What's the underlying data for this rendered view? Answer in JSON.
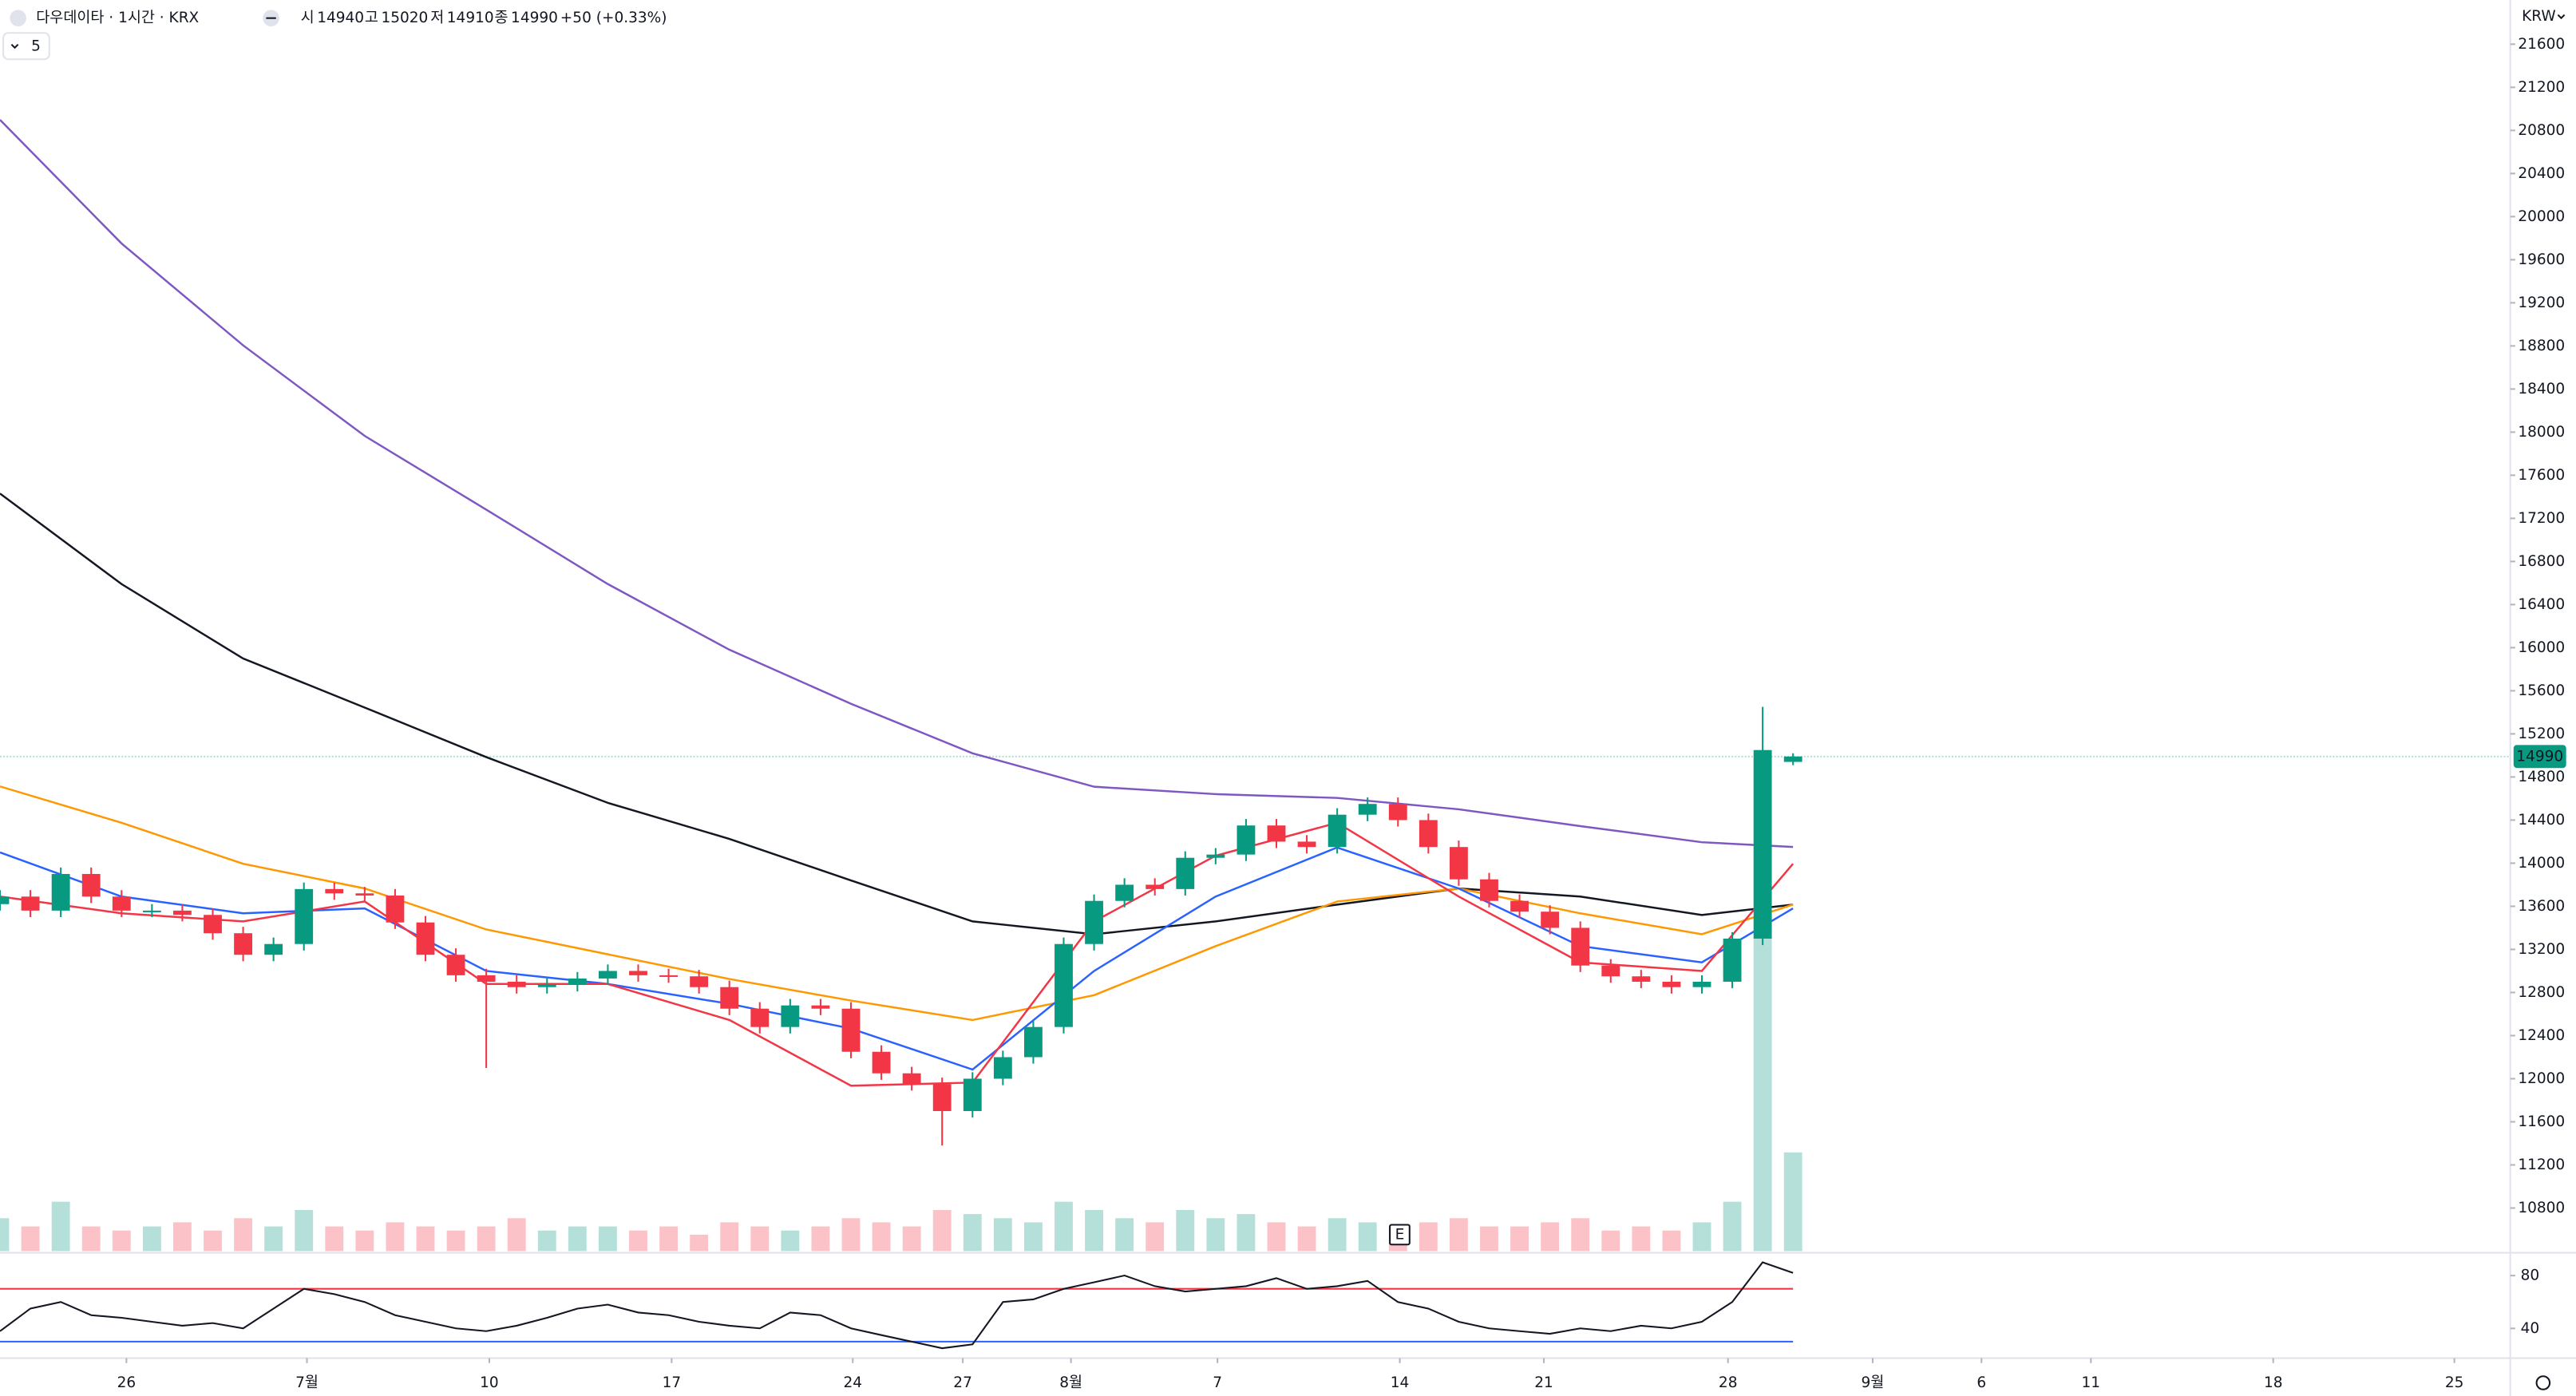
{
  "chart_data": {
    "type": "candlestick",
    "title": "다우데이타 · 1시간 · KRX",
    "ohlc_labels": [
      "시",
      "고",
      "저",
      "종"
    ],
    "ohlc": [
      14940,
      15020,
      14910,
      14990
    ],
    "change": "+50 (+0.33%)",
    "indicator_count": 5,
    "currency": "KRW",
    "last_price": 14990,
    "event_marker": "E",
    "up_color": "#089981",
    "down_color": "#f23645",
    "grid": false,
    "xlim": [
      0,
      413
    ],
    "xticks": [
      {
        "value": 20.8,
        "label": "26"
      },
      {
        "value": 50.5,
        "label": "7월"
      },
      {
        "value": 80.5,
        "label": "10"
      },
      {
        "value": 110.5,
        "label": "17"
      },
      {
        "value": 140.3,
        "label": "24"
      },
      {
        "value": 158.4,
        "label": "27"
      },
      {
        "value": 176.2,
        "label": "8월"
      },
      {
        "value": 200.3,
        "label": "7"
      },
      {
        "value": 230.3,
        "label": "14"
      },
      {
        "value": 254,
        "label": "21"
      },
      {
        "value": 284.3,
        "label": "28"
      },
      {
        "value": 308.1,
        "label": "9월"
      },
      {
        "value": 326,
        "label": "6"
      },
      {
        "value": 344,
        "label": "11"
      },
      {
        "value": 374,
        "label": "18"
      },
      {
        "value": 403.8,
        "label": "25"
      }
    ],
    "ylim": [
      10400,
      22010
    ],
    "yticks": [
      10800,
      11200,
      11600,
      12000,
      12400,
      12800,
      13200,
      13600,
      14000,
      14400,
      14800,
      15200,
      15600,
      16000,
      16400,
      16800,
      17200,
      17600,
      18000,
      18400,
      18800,
      19200,
      19600,
      20000,
      20400,
      20800,
      21200,
      21600
    ],
    "x": [
      0,
      5,
      10,
      15,
      20,
      25,
      30,
      35,
      40,
      45,
      50,
      55,
      60,
      65,
      70,
      75,
      80,
      85,
      90,
      95,
      100,
      105,
      110,
      115,
      120,
      125,
      130,
      135,
      140,
      145,
      150,
      155,
      160,
      165,
      170,
      175,
      180,
      185,
      190,
      195,
      200,
      205,
      210,
      215,
      220,
      225,
      230,
      235,
      240,
      245,
      250,
      255,
      260,
      265,
      270,
      275,
      280,
      285,
      290,
      295
    ],
    "open": [
      13620,
      13690,
      13560,
      13900,
      13690,
      13560,
      13560,
      13520,
      13350,
      13150,
      13250,
      13760,
      13720,
      13700,
      13450,
      13150,
      12960,
      12900,
      12850,
      12870,
      12930,
      13000,
      12960,
      12950,
      12850,
      12650,
      12480,
      12680,
      12650,
      12250,
      12050,
      11950,
      11700,
      12000,
      12200,
      12480,
      13250,
      13650,
      13800,
      13760,
      14050,
      14080,
      14350,
      14200,
      14150,
      14450,
      14550,
      14400,
      14150,
      13850,
      13650,
      13550,
      13400,
      13050,
      12950,
      12900,
      12850,
      12900,
      13300,
      14940
    ],
    "high": [
      13750,
      13750,
      13960,
      13960,
      13750,
      13620,
      13620,
      13580,
      13410,
      13310,
      13820,
      13820,
      13780,
      13760,
      13510,
      13210,
      13020,
      12960,
      12930,
      12990,
      13060,
      13060,
      13020,
      13010,
      12910,
      12710,
      12740,
      12740,
      12710,
      12310,
      12110,
      12010,
      12060,
      12260,
      12540,
      13310,
      13710,
      13860,
      13860,
      14110,
      14140,
      14410,
      14410,
      14260,
      14510,
      14610,
      14610,
      14460,
      14210,
      13910,
      13710,
      13610,
      13460,
      13110,
      13010,
      12960,
      12960,
      13360,
      15450,
      15020
    ],
    "low": [
      13560,
      13500,
      13500,
      13630,
      13500,
      13500,
      13460,
      13290,
      13090,
      13090,
      13190,
      13660,
      13640,
      13390,
      13090,
      12900,
      12100,
      12790,
      12790,
      12810,
      12870,
      12900,
      12890,
      12790,
      12590,
      12420,
      12420,
      12590,
      12190,
      11990,
      11890,
      11380,
      11640,
      11940,
      12140,
      12420,
      13190,
      13590,
      13700,
      13700,
      13990,
      14020,
      14140,
      14090,
      14090,
      14390,
      14340,
      14090,
      13790,
      13590,
      13490,
      13340,
      12990,
      12890,
      12840,
      12790,
      12790,
      12840,
      13240,
      14910
    ],
    "close": [
      13690,
      13560,
      13900,
      13690,
      13560,
      13560,
      13520,
      13350,
      13150,
      13250,
      13760,
      13720,
      13700,
      13450,
      13150,
      12960,
      12900,
      12850,
      12870,
      12930,
      13000,
      12960,
      12950,
      12850,
      12650,
      12480,
      12680,
      12650,
      12250,
      12050,
      11950,
      11700,
      12000,
      12200,
      12480,
      13250,
      13650,
      13800,
      13760,
      14050,
      14080,
      14350,
      14200,
      14150,
      14450,
      14550,
      14400,
      14150,
      13850,
      13650,
      13550,
      13400,
      13050,
      12950,
      12900,
      12850,
      12900,
      13300,
      15050,
      14990
    ],
    "volume": [
      40000,
      30000,
      60000,
      30000,
      25000,
      30000,
      35000,
      25000,
      40000,
      30000,
      50000,
      30000,
      25000,
      35000,
      30000,
      25000,
      30000,
      40000,
      25000,
      30000,
      30000,
      25000,
      30000,
      20000,
      35000,
      30000,
      25000,
      30000,
      40000,
      35000,
      30000,
      50000,
      45000,
      40000,
      35000,
      60000,
      50000,
      40000,
      35000,
      50000,
      40000,
      45000,
      35000,
      30000,
      40000,
      35000,
      30000,
      35000,
      40000,
      30000,
      30000,
      35000,
      40000,
      25000,
      30000,
      25000,
      35000,
      60000,
      380000,
      120000
    ],
    "ma_x": [
      0,
      20,
      40,
      60,
      80,
      100,
      120,
      140,
      160,
      180,
      200,
      220,
      240,
      260,
      280,
      295
    ],
    "moving_averages": [
      {
        "color": "#7e57c2",
        "values": [
          20898,
          19750,
          18805,
          17965,
          17280,
          16590,
          15980,
          15480,
          15020,
          14710,
          14640,
          14605,
          14500,
          14345,
          14195,
          14150
        ]
      },
      {
        "color": "#131722",
        "values": [
          17430,
          16590,
          15900,
          15445,
          14985,
          14560,
          14225,
          13840,
          13460,
          13340,
          13460,
          13615,
          13765,
          13690,
          13520,
          13615
        ]
      },
      {
        "color": "#ff9800",
        "values": [
          14712,
          14375,
          13995,
          13765,
          13385,
          13155,
          12925,
          12725,
          12545,
          12775,
          13230,
          13645,
          13765,
          13535,
          13340,
          13615
        ]
      },
      {
        "color": "#2962ff",
        "values": [
          14100,
          13690,
          13535,
          13580,
          13000,
          12880,
          12695,
          12465,
          12085,
          13000,
          13690,
          14145,
          13765,
          13230,
          13080,
          13580
        ]
      },
      {
        "color": "#f23645",
        "values": [
          13690,
          13535,
          13460,
          13645,
          12880,
          12880,
          12545,
          11935,
          11965,
          13460,
          14070,
          14375,
          13690,
          13080,
          13000,
          13995
        ]
      }
    ],
    "rsi": {
      "values": [
        38,
        55,
        60,
        50,
        48,
        45,
        42,
        44,
        40,
        55,
        70,
        66,
        60,
        50,
        45,
        40,
        38,
        42,
        48,
        55,
        58,
        52,
        50,
        45,
        42,
        40,
        52,
        50,
        40,
        35,
        30,
        25,
        28,
        60,
        62,
        70,
        75,
        80,
        72,
        68,
        70,
        72,
        78,
        70,
        72,
        76,
        60,
        55,
        45,
        40,
        38,
        36,
        40,
        38,
        42,
        40,
        45,
        60,
        90,
        82
      ],
      "ylim": [
        20,
        96
      ],
      "yticks": [
        40,
        80
      ],
      "levels": [
        {
          "value": 70,
          "color": "#f23645"
        },
        {
          "value": 30,
          "color": "#2962ff"
        }
      ],
      "color": "#131722"
    }
  }
}
